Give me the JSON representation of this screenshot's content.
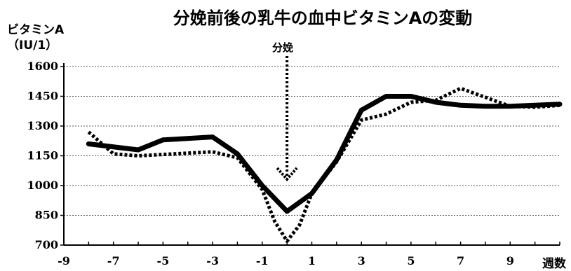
{
  "chart_data": {
    "type": "line",
    "title": "分娩前後の乳牛の血中ビタミンAの変動",
    "ylabel_line1": "ビタミンA",
    "ylabel_line2": "（IU/1）",
    "xlabel": "週数",
    "annotation": "分娩",
    "annotation_x": 0,
    "xlim": [
      -9,
      11
    ],
    "ylim": [
      700,
      1600
    ],
    "xticks": [
      -9,
      -7,
      -5,
      -3,
      -1,
      1,
      3,
      5,
      7,
      9
    ],
    "yticks": [
      1600,
      1450,
      1300,
      1150,
      1000,
      850,
      700
    ],
    "grid": true,
    "colors": {
      "line": "#000000",
      "grid": "#555555"
    },
    "series": [
      {
        "style": "solid",
        "x": [
          -8,
          -6,
          -5,
          -3,
          -2,
          -1,
          0,
          1,
          2,
          3,
          4,
          5,
          6,
          7,
          8,
          9,
          10,
          11
        ],
        "y": [
          1210,
          1180,
          1230,
          1245,
          1160,
          1000,
          870,
          960,
          1130,
          1380,
          1450,
          1450,
          1420,
          1405,
          1400,
          1400,
          1405,
          1410
        ]
      },
      {
        "style": "dotted",
        "x": [
          -8,
          -7,
          -6,
          -3,
          -2,
          -1,
          -0.5,
          0,
          0.5,
          1,
          2,
          3,
          4,
          5,
          6,
          7,
          8,
          9,
          10,
          11
        ],
        "y": [
          1270,
          1160,
          1150,
          1170,
          1140,
          980,
          820,
          720,
          800,
          960,
          1120,
          1330,
          1360,
          1420,
          1430,
          1490,
          1445,
          1400,
          1395,
          1405
        ]
      }
    ]
  }
}
